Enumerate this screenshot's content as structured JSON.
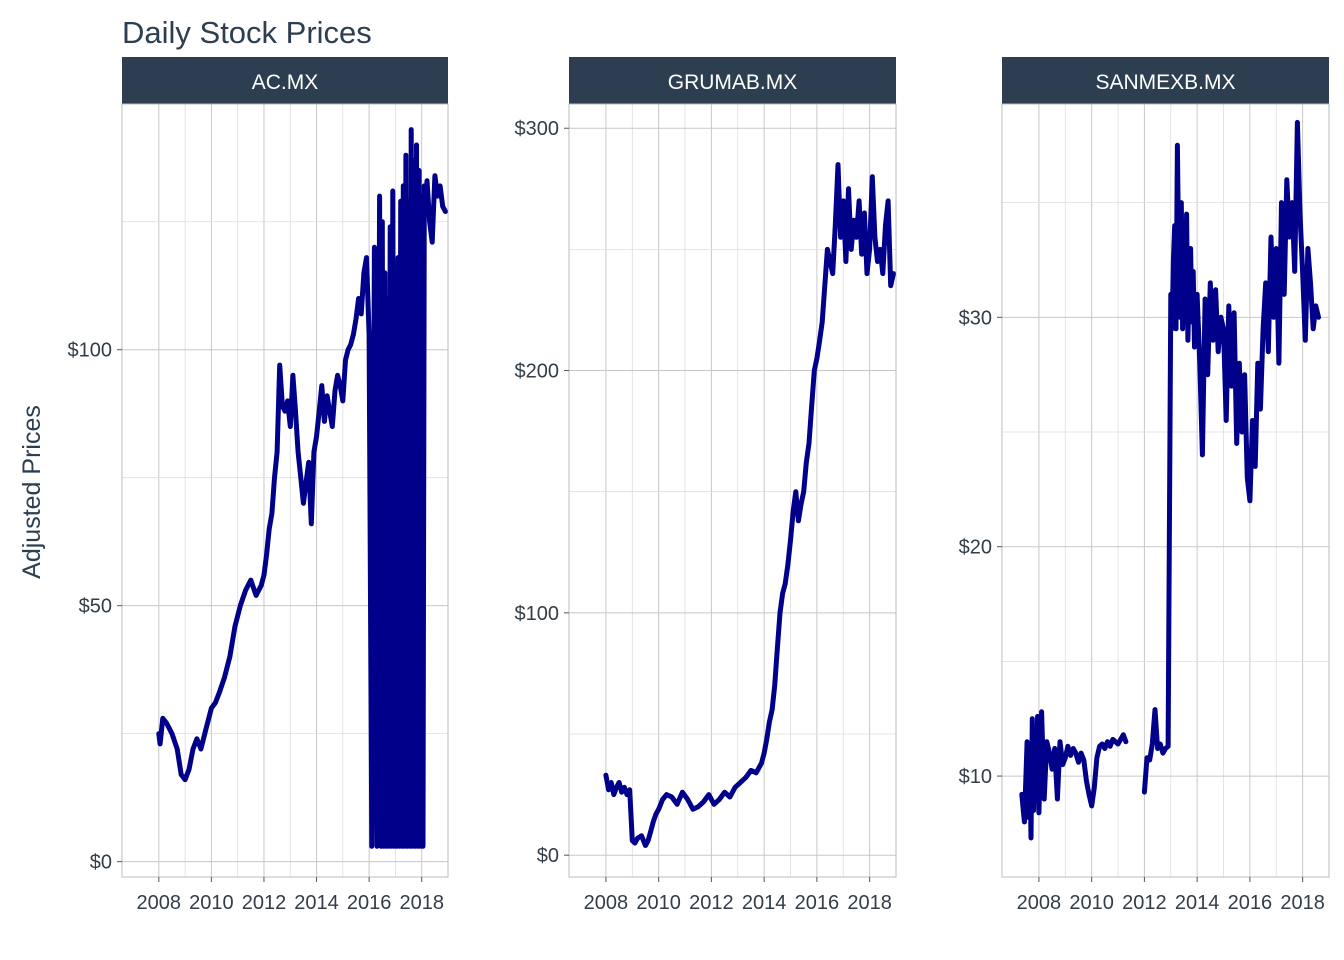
{
  "title": "Daily Stock Prices",
  "ylabel": "Adjusted Prices",
  "colors": {
    "line": "#00008b",
    "strip": "#2c3e50",
    "strip_text": "#ffffff",
    "text": "#2c3e50"
  },
  "chart_data": [
    {
      "type": "line",
      "facet": "AC.MX",
      "x_ticks": [
        "2008",
        "2010",
        "2012",
        "2014",
        "2016",
        "2018"
      ],
      "y_ticks": [
        "$0",
        "$50",
        "$100"
      ],
      "y_tick_values": [
        0,
        50,
        100
      ],
      "ylim": [
        -3,
        148
      ],
      "xlim": [
        2006.6,
        2019.0
      ],
      "series": [
        {
          "x": [
            2008.0,
            2008.05,
            2008.15,
            2008.3,
            2008.5,
            2008.7,
            2008.85,
            2009.0,
            2009.15,
            2009.3,
            2009.45,
            2009.6,
            2009.8,
            2010.0,
            2010.15,
            2010.3,
            2010.5,
            2010.7,
            2010.9,
            2011.1,
            2011.3,
            2011.5,
            2011.7,
            2011.9,
            2012.0,
            2012.1,
            2012.2,
            2012.3,
            2012.4,
            2012.5,
            2012.6,
            2012.7,
            2012.8,
            2012.9,
            2013.0,
            2013.1,
            2013.2,
            2013.3,
            2013.4,
            2013.5,
            2013.6,
            2013.7,
            2013.8,
            2013.9,
            2014.0,
            2014.1,
            2014.2,
            2014.3,
            2014.4,
            2014.5,
            2014.6,
            2014.7,
            2014.8,
            2014.9,
            2015.0,
            2015.1,
            2015.2,
            2015.3,
            2015.4,
            2015.5,
            2015.6,
            2015.7,
            2015.8,
            2015.9,
            2016.0,
            2016.1,
            2016.2,
            2016.3,
            2016.4,
            2016.45,
            2016.5,
            2016.55,
            2016.6,
            2016.65,
            2016.7,
            2016.75,
            2016.8,
            2016.85,
            2016.9,
            2016.95,
            2017.0,
            2017.05,
            2017.1,
            2017.15,
            2017.2,
            2017.25,
            2017.3,
            2017.35,
            2017.4,
            2017.45,
            2017.5,
            2017.55,
            2017.6,
            2017.65,
            2017.7,
            2017.75,
            2017.8,
            2017.85,
            2017.9,
            2017.95,
            2018.0,
            2018.05,
            2018.1,
            2018.15,
            2018.2,
            2018.3,
            2018.4,
            2018.5,
            2018.6,
            2018.7,
            2018.8,
            2018.9
          ],
          "y": [
            25,
            23,
            28,
            27,
            25,
            22,
            17,
            16,
            18,
            22,
            24,
            22,
            26,
            30,
            31,
            33,
            36,
            40,
            46,
            50,
            53,
            55,
            52,
            54,
            56,
            60,
            65,
            68,
            75,
            80,
            97,
            89,
            88,
            90,
            85,
            95,
            88,
            80,
            75,
            70,
            74,
            78,
            66,
            80,
            83,
            88,
            93,
            86,
            91,
            88,
            85,
            92,
            95,
            93,
            90,
            98,
            100,
            101,
            103,
            106,
            110,
            107,
            115,
            118,
            103,
            3,
            120,
            3,
            130,
            3,
            125,
            3,
            115,
            3,
            110,
            3,
            124,
            3,
            131,
            3,
            115,
            3,
            118,
            3,
            129,
            3,
            132,
            3,
            138,
            3,
            129,
            3,
            143,
            3,
            137,
            3,
            140,
            3,
            135,
            3,
            130,
            3,
            132,
            128,
            133,
            125,
            121,
            134,
            130,
            132,
            128,
            127
          ]
        }
      ]
    },
    {
      "type": "line",
      "facet": "GRUMAB.MX",
      "x_ticks": [
        "2008",
        "2010",
        "2012",
        "2014",
        "2016",
        "2018"
      ],
      "y_ticks": [
        "$0",
        "$100",
        "$200",
        "$300"
      ],
      "y_tick_values": [
        0,
        100,
        200,
        300
      ],
      "ylim": [
        -9,
        310
      ],
      "xlim": [
        2006.6,
        2019.0
      ],
      "series": [
        {
          "x": [
            2008.0,
            2008.1,
            2008.2,
            2008.3,
            2008.4,
            2008.5,
            2008.6,
            2008.7,
            2008.8,
            2008.9,
            2009.0,
            2009.1,
            2009.2,
            2009.35,
            2009.5,
            2009.6,
            2009.7,
            2009.8,
            2009.9,
            2010.0,
            2010.15,
            2010.3,
            2010.5,
            2010.7,
            2010.9,
            2011.1,
            2011.3,
            2011.5,
            2011.7,
            2011.9,
            2012.1,
            2012.3,
            2012.5,
            2012.7,
            2012.9,
            2013.1,
            2013.3,
            2013.5,
            2013.7,
            2013.9,
            2014.0,
            2014.1,
            2014.2,
            2014.3,
            2014.4,
            2014.5,
            2014.6,
            2014.7,
            2014.8,
            2014.9,
            2015.0,
            2015.1,
            2015.2,
            2015.3,
            2015.4,
            2015.5,
            2015.6,
            2015.7,
            2015.8,
            2015.9,
            2016.0,
            2016.1,
            2016.2,
            2016.3,
            2016.4,
            2016.5,
            2016.6,
            2016.7,
            2016.8,
            2016.9,
            2017.0,
            2017.1,
            2017.2,
            2017.3,
            2017.4,
            2017.5,
            2017.6,
            2017.7,
            2017.8,
            2017.9,
            2018.0,
            2018.1,
            2018.2,
            2018.3,
            2018.4,
            2018.5,
            2018.6,
            2018.7,
            2018.8,
            2018.9
          ],
          "y": [
            33,
            27,
            30,
            25,
            28,
            30,
            26,
            28,
            25,
            27,
            6,
            5,
            7,
            8,
            4,
            6,
            10,
            14,
            17,
            19,
            23,
            25,
            24,
            21,
            26,
            23,
            19,
            20,
            22,
            25,
            21,
            23,
            26,
            24,
            28,
            30,
            32,
            35,
            34,
            38,
            42,
            48,
            55,
            60,
            70,
            85,
            100,
            108,
            112,
            120,
            130,
            142,
            150,
            138,
            145,
            150,
            162,
            170,
            185,
            200,
            205,
            212,
            220,
            235,
            250,
            245,
            240,
            260,
            285,
            255,
            270,
            245,
            275,
            250,
            262,
            255,
            270,
            248,
            265,
            240,
            250,
            280,
            255,
            245,
            250,
            240,
            260,
            270,
            235,
            240
          ]
        }
      ]
    },
    {
      "type": "line",
      "facet": "SANMEXB.MX",
      "x_ticks": [
        "2008",
        "2010",
        "2012",
        "2014",
        "2016",
        "2018"
      ],
      "y_ticks": [
        "$10",
        "$20",
        "$30"
      ],
      "y_tick_values": [
        10,
        20,
        30
      ],
      "ylim": [
        5.6,
        39.3
      ],
      "xlim": [
        2006.6,
        2019.0
      ],
      "series": [
        {
          "x": [
            2007.35,
            2007.45,
            2007.55,
            2007.6,
            2007.65,
            2007.7,
            2007.75,
            2007.8,
            2007.85,
            2007.9,
            2007.95,
            2008.0,
            2008.1,
            2008.2,
            2008.3,
            2008.4,
            2008.5,
            2008.6,
            2008.7,
            2008.8,
            2008.9,
            2009.0,
            2009.1,
            2009.2,
            2009.3,
            2009.4,
            2009.5,
            2009.6,
            2009.7,
            2009.8,
            2009.9,
            2010.0,
            2010.1,
            2010.2,
            2010.3,
            2010.4,
            2010.5,
            2010.6,
            2010.7,
            2010.8,
            2010.9,
            2011.0,
            2011.1,
            2011.2,
            2011.3,
            null,
            2012.0,
            2012.1,
            2012.2,
            2012.3,
            2012.4,
            2012.5,
            2012.6,
            2012.7,
            2012.8,
            2012.9,
            2013.0,
            2013.05,
            2013.1,
            2013.15,
            2013.2,
            2013.25,
            2013.3,
            2013.35,
            2013.4,
            2013.45,
            2013.5,
            2013.55,
            2013.6,
            2013.65,
            2013.7,
            2013.75,
            2013.8,
            2013.85,
            2013.9,
            2013.95,
            2014.0,
            2014.1,
            2014.2,
            2014.3,
            2014.4,
            2014.5,
            2014.6,
            2014.7,
            2014.8,
            2014.9,
            2015.0,
            2015.1,
            2015.2,
            2015.3,
            2015.4,
            2015.5,
            2015.6,
            2015.7,
            2015.8,
            2015.9,
            2016.0,
            2016.1,
            2016.2,
            2016.3,
            2016.4,
            2016.5,
            2016.6,
            2016.7,
            2016.8,
            2016.9,
            2017.0,
            2017.1,
            2017.2,
            2017.3,
            2017.4,
            2017.5,
            2017.6,
            2017.7,
            2017.8,
            2017.9,
            2018.0,
            2018.1,
            2018.2,
            2018.3,
            2018.4,
            2018.5,
            2018.6
          ],
          "y": [
            9.2,
            8.0,
            11.5,
            8.2,
            11.2,
            7.3,
            12.5,
            8.5,
            12.0,
            9.0,
            12.6,
            8.4,
            12.8,
            9.0,
            11.5,
            11.0,
            10.3,
            11.2,
            9.0,
            11.5,
            10.5,
            10.8,
            11.3,
            10.9,
            11.2,
            11.0,
            10.6,
            11.0,
            10.7,
            9.8,
            9.2,
            8.7,
            9.5,
            10.8,
            11.3,
            11.4,
            11.2,
            11.5,
            11.3,
            11.6,
            11.5,
            11.4,
            11.6,
            11.8,
            11.5,
            null,
            9.3,
            10.8,
            10.7,
            11.4,
            12.9,
            11.2,
            11.4,
            11.0,
            11.2,
            11.3,
            31.0,
            29.5,
            32.5,
            34.0,
            29.5,
            37.5,
            32.5,
            30.0,
            35.0,
            29.5,
            33.5,
            30.5,
            34.5,
            29.0,
            31.5,
            33.0,
            29.8,
            32.0,
            28.7,
            30.5,
            31.0,
            28.0,
            24.0,
            30.8,
            27.5,
            31.5,
            29.0,
            31.2,
            28.5,
            30.0,
            29.5,
            25.5,
            30.5,
            27.0,
            30.2,
            24.5,
            28.0,
            25.0,
            27.5,
            23.0,
            22.0,
            25.5,
            23.5,
            28.0,
            26.0,
            29.5,
            31.5,
            28.5,
            33.5,
            30.0,
            33.0,
            28.0,
            35.0,
            31.0,
            36.0,
            33.5,
            35.0,
            32.0,
            38.5,
            34.5,
            32.0,
            29.0,
            33.0,
            31.5,
            29.5,
            30.5,
            30.0
          ]
        }
      ]
    }
  ]
}
